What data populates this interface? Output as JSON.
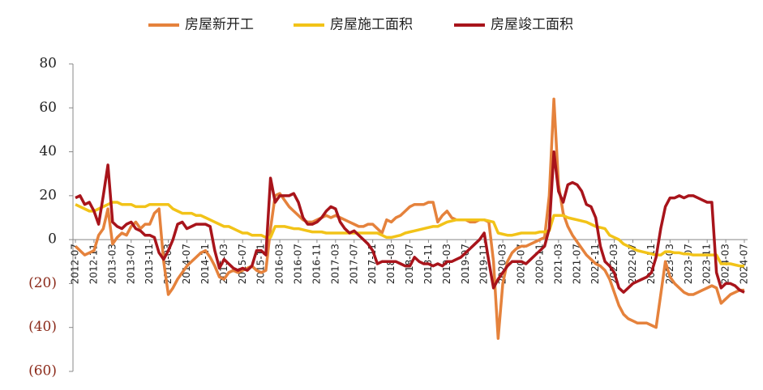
{
  "chart_data": {
    "type": "line",
    "ylim": [
      -60,
      80
    ],
    "yticks": [
      80,
      60,
      40,
      20,
      0,
      {
        "value": -20,
        "label": "(20)"
      },
      {
        "value": -40,
        "label": "(40)"
      },
      {
        "value": -60,
        "label": "(60)"
      }
    ],
    "categories": [
      "2012-07",
      null,
      null,
      null,
      "2012-11",
      null,
      null,
      null,
      "2013-03",
      null,
      null,
      null,
      "2013-07",
      null,
      null,
      null,
      "2013-11",
      null,
      null,
      null,
      "2014-03",
      null,
      null,
      null,
      "2014-07",
      null,
      null,
      null,
      "2014-11",
      null,
      null,
      null,
      "2015-03",
      null,
      null,
      null,
      "2015-07",
      null,
      null,
      null,
      "2015-11",
      null,
      null,
      null,
      "2016-03",
      null,
      null,
      null,
      "2016-07",
      null,
      null,
      null,
      "2016-11",
      null,
      null,
      null,
      "2017-03",
      null,
      null,
      null,
      "2017-07",
      null,
      null,
      null,
      "2017-11",
      null,
      null,
      null,
      "2018-03",
      null,
      null,
      null,
      "2018-07",
      null,
      null,
      null,
      "2018-11",
      null,
      null,
      null,
      "2019-03",
      null,
      null,
      null,
      "2019-07",
      null,
      null,
      null,
      "2019-11",
      null,
      null,
      null,
      "2020-03",
      null,
      null,
      null,
      "2020-07",
      null,
      null,
      null,
      "2020-11",
      null,
      null,
      null,
      "2021-03",
      null,
      null,
      null,
      "2021-07",
      null,
      null,
      null,
      "2021-11",
      null,
      null,
      null,
      "2022-03",
      null,
      null,
      null,
      "2022-07",
      null,
      null,
      null,
      "2022-11",
      null,
      null,
      null,
      "2023-03",
      null,
      null,
      null,
      "2023-07",
      null,
      null,
      null,
      "2023-11",
      null,
      null,
      null,
      "2024-03",
      null,
      null,
      null,
      "2024-07"
    ],
    "series": [
      {
        "name": "房屋新开工",
        "color": "#E5823C",
        "values": [
          -3,
          -5,
          -7,
          -6,
          -5,
          2,
          5,
          14,
          -2,
          1,
          3,
          2,
          6,
          8,
          5,
          7,
          7,
          12,
          14,
          -10,
          -25,
          -22,
          -18,
          -15,
          -12,
          -10,
          -8,
          -6,
          -5,
          -8,
          -12,
          -17,
          -18,
          -15,
          -14,
          -15,
          -14,
          -13,
          -12,
          -14,
          -15,
          -14,
          5,
          20,
          21,
          18,
          15,
          13,
          11,
          9,
          8,
          8,
          9,
          10,
          11,
          10,
          11,
          10,
          9,
          8,
          7,
          6,
          6,
          7,
          7,
          5,
          3,
          9,
          8,
          10,
          11,
          13,
          15,
          16,
          16,
          16,
          17,
          17,
          8,
          11,
          13,
          10,
          9,
          9,
          9,
          8,
          8,
          9,
          9,
          8,
          -10,
          -45,
          -20,
          -10,
          -6,
          -4,
          -3,
          -3,
          -2,
          -1,
          0,
          1,
          20,
          64,
          25,
          12,
          6,
          2,
          -1,
          -4,
          -7,
          -9,
          -11,
          -12,
          -14,
          -18,
          -24,
          -30,
          -34,
          -36,
          -37,
          -38,
          -38,
          -38,
          -39,
          -40,
          -25,
          -10,
          -17,
          -20,
          -22,
          -24,
          -25,
          -25,
          -24,
          -23,
          -22,
          -21,
          -22,
          -29,
          -27,
          -25,
          -24,
          -23,
          -23
        ]
      },
      {
        "name": "房屋施工面积",
        "color": "#F2C318",
        "values": [
          16,
          15,
          14,
          13,
          13,
          14,
          15,
          16,
          17,
          17,
          16,
          16,
          16,
          15,
          15,
          15,
          16,
          16,
          16,
          16,
          16,
          14,
          13,
          12,
          12,
          12,
          11,
          11,
          10,
          9,
          8,
          7,
          6,
          6,
          5,
          4,
          3,
          3,
          2,
          2,
          2,
          1,
          1,
          6,
          6,
          6,
          5.5,
          5,
          5,
          4.5,
          4,
          3.5,
          3.5,
          3.5,
          3,
          3,
          3,
          3,
          3,
          3,
          3,
          3,
          3,
          3,
          3,
          3,
          2,
          1,
          1,
          1.5,
          2,
          3,
          3.5,
          4,
          4.5,
          5,
          5.5,
          6,
          6,
          7,
          8,
          8.5,
          9,
          9,
          9,
          9,
          9,
          9,
          9,
          8.5,
          8,
          3,
          2.5,
          2,
          2,
          2.5,
          3,
          3,
          3,
          3,
          3.5,
          3.5,
          4,
          11,
          11,
          11,
          10,
          9.5,
          9,
          8.5,
          8,
          7,
          6,
          5.5,
          5,
          2,
          1,
          0,
          -2,
          -3,
          -4,
          -5,
          -5.5,
          -6,
          -6.5,
          -7,
          -7,
          -5.5,
          -5.5,
          -6,
          -6,
          -6.5,
          -6.5,
          -7,
          -7,
          -7,
          -7,
          -7,
          -7,
          -11,
          -11,
          -11,
          -11.5,
          -12,
          -12
        ]
      },
      {
        "name": "房屋竣工面积",
        "color": "#A8141B",
        "values": [
          19,
          20,
          16,
          17,
          13,
          7,
          20,
          34,
          8,
          6,
          5,
          7,
          8,
          5,
          4,
          2,
          2,
          1,
          -6,
          -9,
          -5,
          0,
          7,
          8,
          5,
          6,
          7,
          7,
          7,
          6,
          -5,
          -13,
          -9,
          -11,
          -13,
          -14,
          -13,
          -14,
          -12,
          -5,
          -5,
          -7,
          28,
          17,
          20,
          20,
          20,
          21,
          17,
          10,
          7,
          7,
          8,
          10,
          13,
          15,
          14,
          8,
          5,
          3,
          4,
          2,
          0,
          -2,
          -5,
          -11,
          -10,
          -10,
          -10,
          -10,
          -11,
          -12,
          -12,
          -8,
          -10,
          -11,
          -11,
          -12,
          -11,
          -12,
          -10,
          -10,
          -9,
          -8,
          -6,
          -4,
          -2,
          0,
          3,
          -10,
          -22,
          -18,
          -15,
          -12,
          -10,
          -10,
          -10,
          -11,
          -9,
          -7,
          -5,
          -3,
          5,
          40,
          22,
          17,
          25,
          26,
          25,
          22,
          16,
          15,
          10,
          -3,
          -10,
          -12,
          -15,
          -22,
          -24,
          -22,
          -20,
          -19,
          -18,
          -17,
          -15,
          -8,
          5,
          15,
          19,
          19,
          20,
          19,
          20,
          20,
          19,
          18,
          17,
          17,
          -15,
          -22,
          -20,
          -20,
          -21,
          -23,
          -24
        ]
      }
    ]
  }
}
